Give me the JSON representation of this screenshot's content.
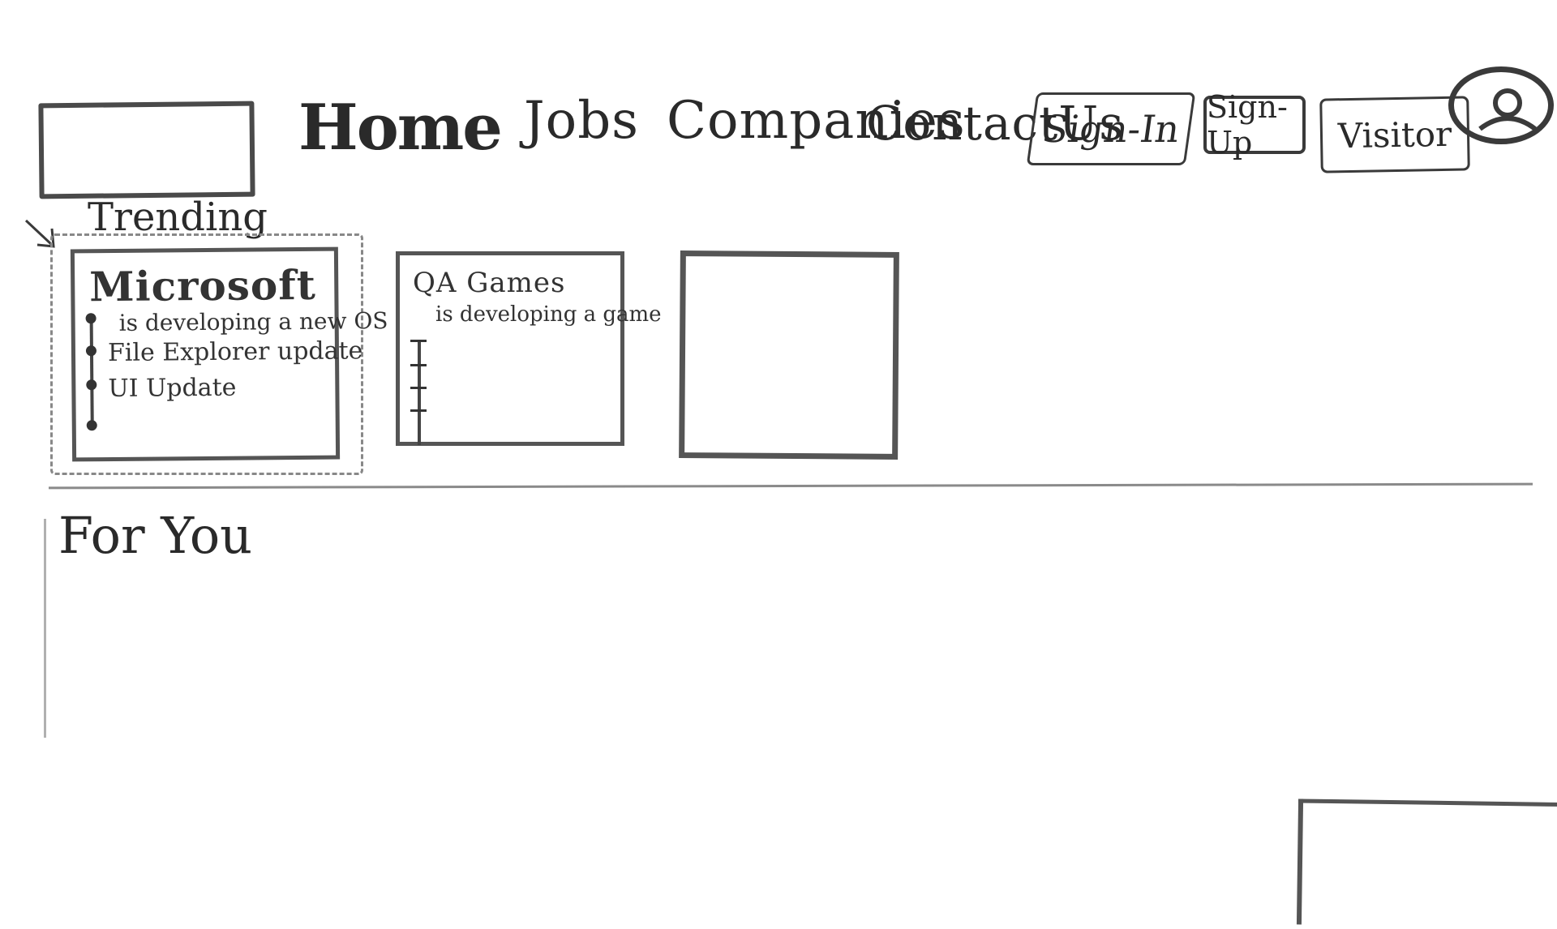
{
  "header": {
    "nav": {
      "home": "Home",
      "jobs": "Jobs",
      "companies": "Companies",
      "contact": "ContactUs"
    },
    "auth": {
      "sign_in": "Sign-In",
      "sign_up": "Sign-Up",
      "visitor": "Visitor"
    }
  },
  "trending": {
    "label": "Trending",
    "cards": [
      {
        "title": "Microsoft",
        "subtitle": "is developing a new OS",
        "items": [
          "File Explorer update",
          "UI Update"
        ]
      },
      {
        "title": "QA Games",
        "subtitle": "is developing a game"
      }
    ]
  },
  "for_you": {
    "label": "For You"
  }
}
